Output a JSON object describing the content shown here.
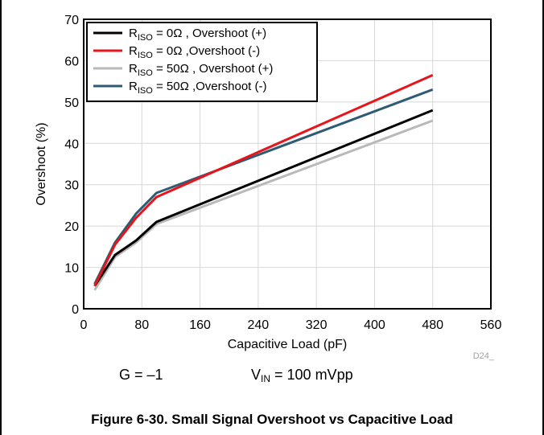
{
  "chart_data": {
    "type": "line",
    "xlabel": "Capacitive Load (pF)",
    "ylabel": "Overshoot (%)",
    "xlim": [
      0,
      560
    ],
    "ylim": [
      0,
      70
    ],
    "xticks": [
      0,
      80,
      160,
      240,
      320,
      400,
      480,
      560
    ],
    "yticks": [
      0,
      10,
      20,
      30,
      40,
      50,
      60,
      70
    ],
    "grid": true,
    "legend_position": "top-left",
    "series": [
      {
        "name": "R_ISO = 0Ω , Overshoot (+)",
        "color": "#000000",
        "x": [
          15,
          43,
          72,
          100,
          480
        ],
        "y": [
          5.5,
          13,
          16.5,
          21,
          48
        ]
      },
      {
        "name": "R_ISO = 0Ω ,Overshoot (-)",
        "color": "#e8141b",
        "x": [
          15,
          43,
          72,
          100,
          480
        ],
        "y": [
          5.5,
          15.5,
          22,
          27,
          56.5
        ]
      },
      {
        "name": "R_ISO = 50Ω , Overshoot (+)",
        "color": "#b9b9b9",
        "x": [
          15,
          43,
          72,
          100,
          480
        ],
        "y": [
          4.5,
          12.5,
          16,
          20.5,
          45.5
        ]
      },
      {
        "name": "R_ISO = 50Ω ,Overshoot (-)",
        "color": "#2e5a74",
        "x": [
          15,
          43,
          72,
          100,
          480
        ],
        "y": [
          6,
          16,
          23,
          28,
          53
        ]
      }
    ],
    "annotations": [
      "D24_"
    ]
  },
  "legend": {
    "items": [
      {
        "pre": "R",
        "sub": "ISO",
        "post": " = 0Ω , Overshoot (+)"
      },
      {
        "pre": "R",
        "sub": "ISO",
        "post": " = 0Ω ,Overshoot (-)"
      },
      {
        "pre": "R",
        "sub": "ISO",
        "post": " = 50Ω , Overshoot (+)"
      },
      {
        "pre": "R",
        "sub": "ISO",
        "post": " = 50Ω ,Overshoot (-)"
      }
    ]
  },
  "conditions": {
    "gain": "G = –1",
    "vin_pre": "V",
    "vin_sub": "IN",
    "vin_post": " = 100 mVpp"
  },
  "caption": "Figure 6-30. Small Signal Overshoot vs Capacitive Load"
}
